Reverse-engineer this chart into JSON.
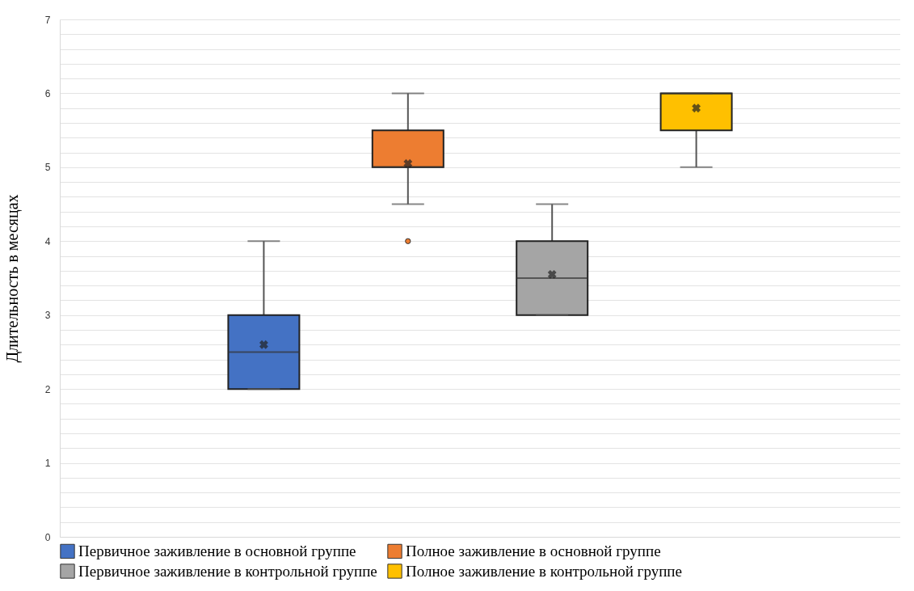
{
  "chart_data": {
    "type": "box",
    "ylabel": "Длительность в месяцах",
    "categories": [
      null
    ],
    "series": [
      {
        "name": "Первичное заживление в основной группе",
        "color": "#4472c4",
        "boxes": [
          {
            "low": 2,
            "q1": 2,
            "median": 2.5,
            "q3": 3,
            "high": 4,
            "mean": 2.6
          }
        ]
      },
      {
        "name": "Полное заживление в основной группе",
        "color": "#ed7d31",
        "boxes": [
          {
            "low": 4.5,
            "q1": 5,
            "median": 5,
            "q3": 5.5,
            "high": 6,
            "mean": 5.05,
            "outliers": [
              4
            ]
          }
        ]
      },
      {
        "name": "Первичное заживление в контрольной группе",
        "color": "#a5a5a5",
        "boxes": [
          {
            "low": 3,
            "q1": 3,
            "median": 3.5,
            "q3": 4,
            "high": 4.5,
            "mean": 3.55
          }
        ]
      },
      {
        "name": "Полное заживление в контрольной группе",
        "color": "#ffc000",
        "boxes": [
          {
            "low": 5,
            "q1": 5.5,
            "median": 6,
            "q3": 6,
            "high": 6,
            "mean": 5.8
          }
        ]
      }
    ],
    "ylim": [
      0,
      7
    ],
    "yticks": [
      0,
      {
        "value": 0.2,
        "label": null
      },
      {
        "value": 0.4,
        "label": null
      },
      {
        "value": 0.6,
        "label": null
      },
      {
        "value": 0.8,
        "label": null
      },
      1,
      {
        "value": 1.2,
        "label": null
      },
      {
        "value": 1.4,
        "label": null
      },
      {
        "value": 1.6,
        "label": null
      },
      {
        "value": 1.8,
        "label": null
      },
      2,
      {
        "value": 2.2,
        "label": null
      },
      {
        "value": 2.4,
        "label": null
      },
      {
        "value": 2.6,
        "label": null
      },
      {
        "value": 2.8,
        "label": null
      },
      3,
      {
        "value": 3.2,
        "label": null
      },
      {
        "value": 3.4,
        "label": null
      },
      {
        "value": 3.6,
        "label": null
      },
      {
        "value": 3.8,
        "label": null
      },
      4,
      {
        "value": 4.2,
        "label": null
      },
      {
        "value": 4.4,
        "label": null
      },
      {
        "value": 4.6,
        "label": null
      },
      {
        "value": 4.8,
        "label": null
      },
      5,
      {
        "value": 5.2,
        "label": null
      },
      {
        "value": 5.4,
        "label": null
      },
      {
        "value": 5.6,
        "label": null
      },
      {
        "value": 5.8,
        "label": null
      },
      6,
      {
        "value": 6.2,
        "label": null
      },
      {
        "value": 6.4,
        "label": null
      },
      {
        "value": 6.6,
        "label": null
      },
      {
        "value": 6.8,
        "label": null
      },
      7
    ],
    "grid": "y",
    "legend": "bottom",
    "tick_labels": "y"
  }
}
